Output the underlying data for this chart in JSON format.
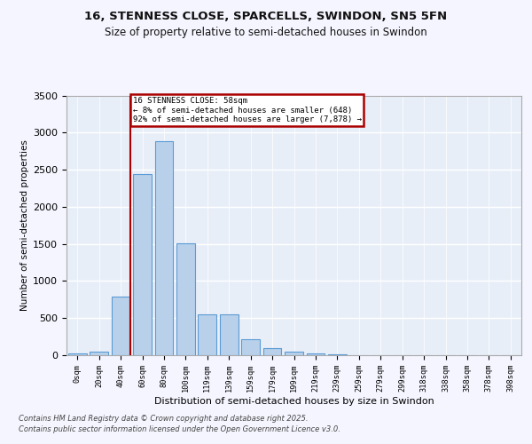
{
  "title": "16, STENNESS CLOSE, SPARCELLS, SWINDON, SN5 5FN",
  "subtitle": "Size of property relative to semi-detached houses in Swindon",
  "xlabel": "Distribution of semi-detached houses by size in Swindon",
  "ylabel": "Number of semi-detached properties",
  "bins": [
    "0sqm",
    "20sqm",
    "40sqm",
    "60sqm",
    "80sqm",
    "100sqm",
    "119sqm",
    "139sqm",
    "159sqm",
    "179sqm",
    "199sqm",
    "219sqm",
    "239sqm",
    "259sqm",
    "279sqm",
    "299sqm",
    "318sqm",
    "338sqm",
    "358sqm",
    "378sqm",
    "398sqm"
  ],
  "values": [
    20,
    50,
    790,
    2440,
    2880,
    1510,
    555,
    555,
    215,
    90,
    45,
    25,
    10,
    5,
    2,
    2,
    1,
    0,
    0,
    0,
    0
  ],
  "bar_color": "#b8d0ea",
  "bar_edge_color": "#5b9bd5",
  "vline_x": 2.45,
  "vline_color": "#aa0000",
  "annotation_line1": "16 STENNESS CLOSE: 58sqm",
  "annotation_line2": "← 8% of semi-detached houses are smaller (648)",
  "annotation_line3": "92% of semi-detached houses are larger (7,878) →",
  "annotation_box_edgecolor": "#aa0000",
  "ylim": [
    0,
    3500
  ],
  "yticks": [
    0,
    500,
    1000,
    1500,
    2000,
    2500,
    3000,
    3500
  ],
  "plot_bg": "#e8eef8",
  "fig_bg": "#f5f5ff",
  "grid_color": "#ffffff",
  "footer_line1": "Contains HM Land Registry data © Crown copyright and database right 2025.",
  "footer_line2": "Contains public sector information licensed under the Open Government Licence v3.0."
}
